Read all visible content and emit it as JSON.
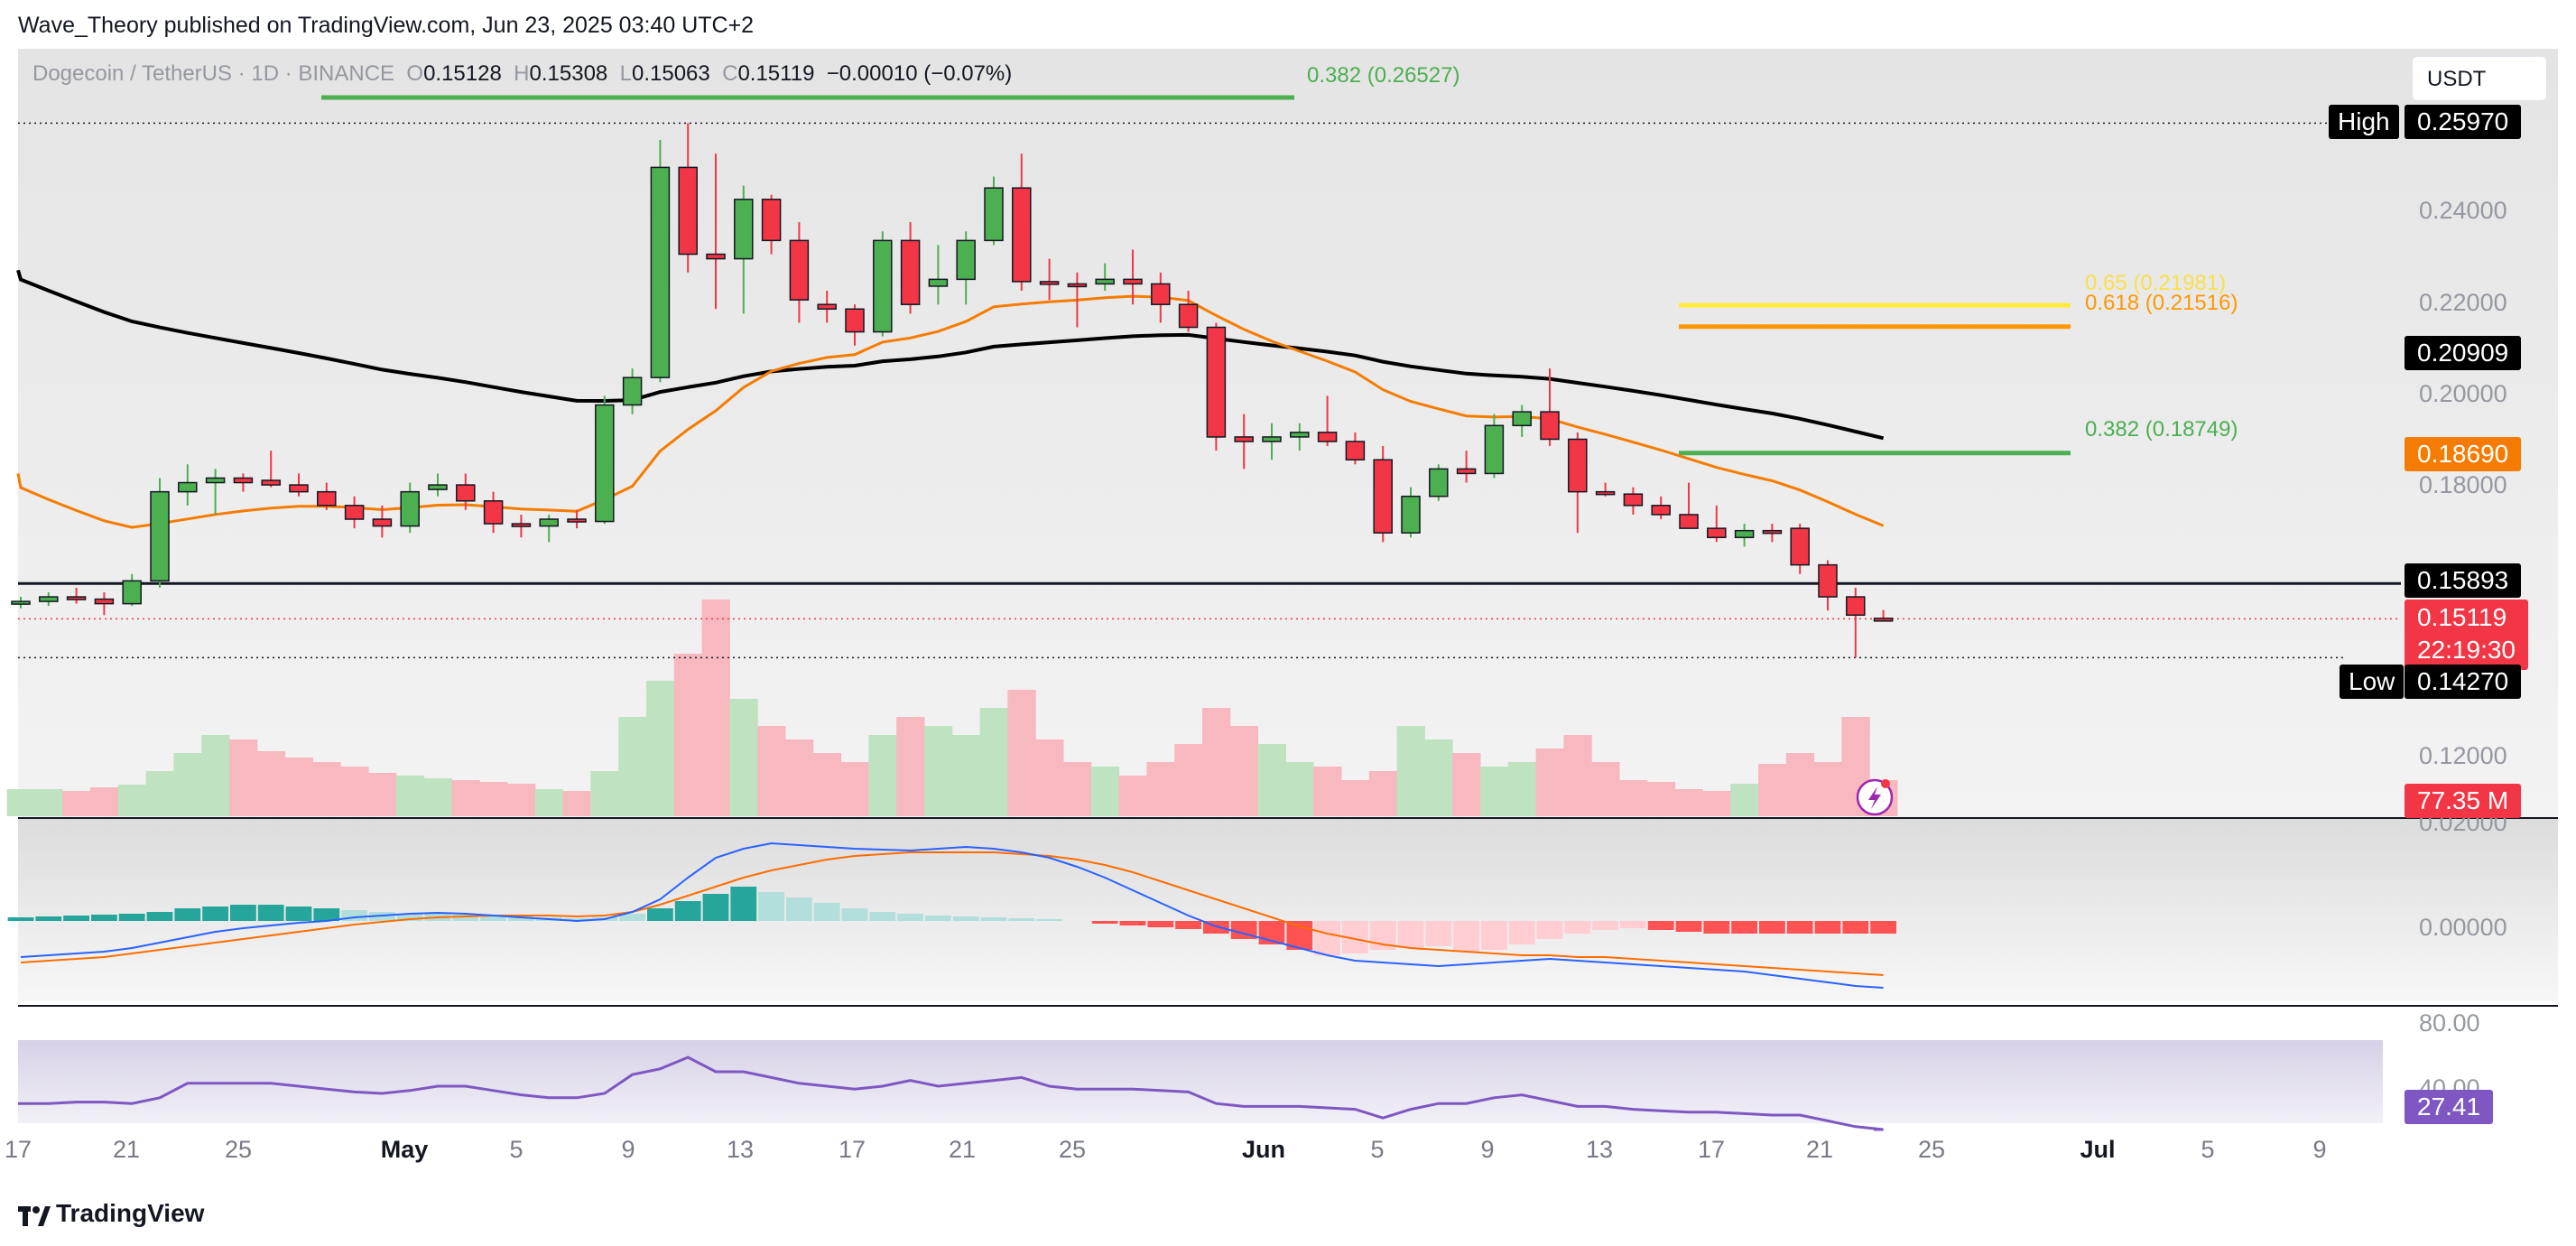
{
  "header": {
    "publisher_text": "Wave_Theory published on TradingView.com, Jun 23, 2025 03:40 UTC+2"
  },
  "legend": {
    "symbol": "Dogecoin / TetherUS · 1D · BINANCE",
    "o_label": "O",
    "o": "0.15128",
    "h_label": "H",
    "h": "0.15308",
    "l_label": "L",
    "l": "0.15063",
    "c_label": "C",
    "c": "0.15119",
    "change": "−0.00010 (−0.07%)"
  },
  "currency_button": "USDT",
  "brand": "TradingView",
  "price_axis": {
    "labels": [
      "0.24000",
      "0.22000",
      "0.20000",
      "0.18000",
      "0.12000",
      "0.02000",
      "0.00000",
      "80.00",
      "40.00"
    ],
    "high_label": "High",
    "high_value": "0.25970",
    "low_label": "Low",
    "low_value": "0.14270",
    "tag_209": "0.20909",
    "tag_1869": "0.18690",
    "tag_1589": "0.15893",
    "tag_last": "0.15119",
    "tag_countdown": "22:19:30",
    "volume_tag": "77.35 M",
    "rsi_tag": "27.41"
  },
  "fib_labels": {
    "top": "0.382 (0.26527)",
    "f65": "0.65 (0.21981)",
    "f618": "0.618 (0.21516)",
    "f382": "0.382 (0.18749)"
  },
  "time_axis": [
    "17",
    "21",
    "25",
    "May",
    "5",
    "9",
    "13",
    "17",
    "21",
    "25",
    "Jun",
    "5",
    "9",
    "13",
    "17",
    "21",
    "25",
    "Jul",
    "5",
    "9"
  ],
  "colors": {
    "up": "#4caf50",
    "down": "#f23645",
    "ema50": "#f57c00",
    "ema200": "#000000",
    "fib_green": "#4caf50",
    "fib_yellow": "#ffeb3b",
    "fib_orange": "#ff9800",
    "macd": "#2962ff",
    "signal": "#ff6d00",
    "rsi": "#7e57c2",
    "vol_up": "#bfe3c0",
    "vol_down": "#f8b8bf"
  },
  "chart_data": {
    "type": "candlestick",
    "symbol": "Dogecoin / TetherUS",
    "interval": "1D",
    "exchange": "BINANCE",
    "candles_ohlc": [
      [
        0.1545,
        0.156,
        0.1535,
        0.155
      ],
      [
        0.155,
        0.157,
        0.154,
        0.156
      ],
      [
        0.156,
        0.158,
        0.1545,
        0.1555
      ],
      [
        0.1555,
        0.157,
        0.152,
        0.1545
      ],
      [
        0.1545,
        0.161,
        0.154,
        0.1595
      ],
      [
        0.1595,
        0.182,
        0.158,
        0.179
      ],
      [
        0.179,
        0.185,
        0.176,
        0.181
      ],
      [
        0.181,
        0.184,
        0.174,
        0.182
      ],
      [
        0.182,
        0.183,
        0.179,
        0.181
      ],
      [
        0.1815,
        0.188,
        0.18,
        0.1805
      ],
      [
        0.1805,
        0.183,
        0.178,
        0.179
      ],
      [
        0.179,
        0.181,
        0.175,
        0.176
      ],
      [
        0.176,
        0.178,
        0.171,
        0.173
      ],
      [
        0.173,
        0.176,
        0.169,
        0.1715
      ],
      [
        0.1715,
        0.181,
        0.17,
        0.179
      ],
      [
        0.1795,
        0.183,
        0.178,
        0.1805
      ],
      [
        0.1805,
        0.183,
        0.175,
        0.177
      ],
      [
        0.177,
        0.179,
        0.17,
        0.172
      ],
      [
        0.172,
        0.174,
        0.169,
        0.1715
      ],
      [
        0.1715,
        0.174,
        0.168,
        0.173
      ],
      [
        0.173,
        0.175,
        0.171,
        0.1725
      ],
      [
        0.1725,
        0.2,
        0.172,
        0.198
      ],
      [
        0.198,
        0.206,
        0.196,
        0.204
      ],
      [
        0.204,
        0.256,
        0.203,
        0.25
      ],
      [
        0.25,
        0.2597,
        0.227,
        0.231
      ],
      [
        0.231,
        0.253,
        0.219,
        0.23
      ],
      [
        0.23,
        0.246,
        0.218,
        0.243
      ],
      [
        0.243,
        0.244,
        0.231,
        0.234
      ],
      [
        0.234,
        0.238,
        0.216,
        0.221
      ],
      [
        0.22,
        0.223,
        0.216,
        0.219
      ],
      [
        0.219,
        0.22,
        0.211,
        0.214
      ],
      [
        0.214,
        0.236,
        0.213,
        0.234
      ],
      [
        0.234,
        0.238,
        0.218,
        0.22
      ],
      [
        0.224,
        0.233,
        0.22,
        0.2255
      ],
      [
        0.2255,
        0.236,
        0.22,
        0.234
      ],
      [
        0.234,
        0.248,
        0.233,
        0.2455
      ],
      [
        0.2455,
        0.253,
        0.223,
        0.225
      ],
      [
        0.225,
        0.23,
        0.221,
        0.2245
      ],
      [
        0.2245,
        0.227,
        0.215,
        0.224
      ],
      [
        0.2245,
        0.229,
        0.223,
        0.2255
      ],
      [
        0.2255,
        0.232,
        0.22,
        0.2245
      ],
      [
        0.2245,
        0.227,
        0.216,
        0.22
      ],
      [
        0.22,
        0.223,
        0.214,
        0.215
      ],
      [
        0.215,
        0.216,
        0.188,
        0.191
      ],
      [
        0.191,
        0.196,
        0.184,
        0.19
      ],
      [
        0.19,
        0.194,
        0.186,
        0.191
      ],
      [
        0.191,
        0.194,
        0.188,
        0.192
      ],
      [
        0.192,
        0.2,
        0.189,
        0.19
      ],
      [
        0.19,
        0.192,
        0.185,
        0.186
      ],
      [
        0.186,
        0.189,
        0.168,
        0.17
      ],
      [
        0.17,
        0.18,
        0.169,
        0.178
      ],
      [
        0.178,
        0.185,
        0.177,
        0.184
      ],
      [
        0.184,
        0.188,
        0.181,
        0.183
      ],
      [
        0.183,
        0.196,
        0.182,
        0.1935
      ],
      [
        0.1935,
        0.198,
        0.191,
        0.1965
      ],
      [
        0.1965,
        0.206,
        0.189,
        0.1905
      ],
      [
        0.1905,
        0.192,
        0.17,
        0.179
      ],
      [
        0.179,
        0.181,
        0.178,
        0.1785
      ],
      [
        0.1785,
        0.18,
        0.174,
        0.176
      ],
      [
        0.176,
        0.178,
        0.173,
        0.174
      ],
      [
        0.174,
        0.181,
        0.172,
        0.171
      ],
      [
        0.171,
        0.176,
        0.168,
        0.169
      ],
      [
        0.169,
        0.172,
        0.167,
        0.1705
      ],
      [
        0.1705,
        0.172,
        0.168,
        0.17
      ],
      [
        0.171,
        0.172,
        0.161,
        0.163
      ],
      [
        0.163,
        0.164,
        0.153,
        0.156
      ],
      [
        0.156,
        0.158,
        0.1427,
        0.152
      ],
      [
        0.1513,
        0.1531,
        0.1506,
        0.1512
      ]
    ],
    "ema50_end": 0.1869,
    "ema200_end": 0.20909,
    "support_level": 0.15893,
    "high": 0.2597,
    "low": 0.1427,
    "last_price": 0.15119,
    "fibonacci": [
      {
        "ratio": 0.382,
        "price": 0.26527
      },
      {
        "ratio": 0.65,
        "price": 0.21981
      },
      {
        "ratio": 0.618,
        "price": 0.21516
      },
      {
        "ratio": 0.382,
        "price": 0.18749
      }
    ],
    "volume_last": "77.35 M",
    "rsi_last": 27.41,
    "ylim_price": [
      0.14,
      0.26
    ],
    "x_labels": [
      "17",
      "21",
      "25",
      "May",
      "5",
      "9",
      "13",
      "17",
      "21",
      "25",
      "Jun",
      "5",
      "9",
      "13",
      "17",
      "21",
      "25",
      "Jul",
      "5",
      "9"
    ]
  }
}
